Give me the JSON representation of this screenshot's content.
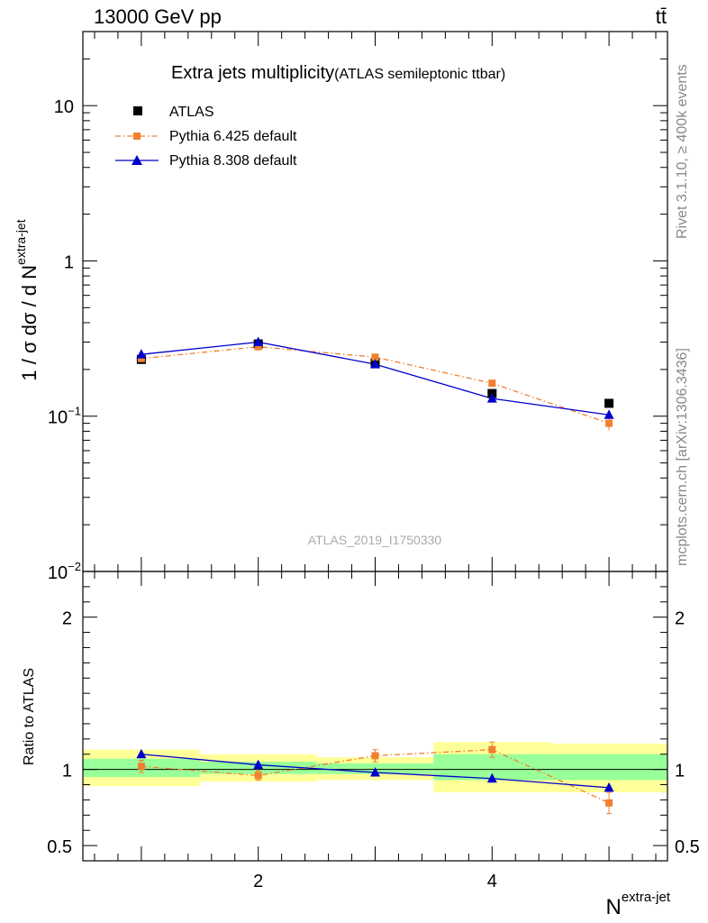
{
  "header": {
    "energy_label": "13000 GeV pp",
    "process_label": "tt̄"
  },
  "side_labels": {
    "rivet": "Rivet 3.1.10, ≥ 400k events",
    "mcplots": "mcplots.cern.ch [arXiv:1306.3436]"
  },
  "colors": {
    "atlas": "#000000",
    "pythia6": "#f08030",
    "pythia8": "#0000cc",
    "band_inner": "#99ff99",
    "band_outer": "#ffff99",
    "label_gray": "#888888"
  },
  "chart_data": [
    {
      "type": "scatter",
      "panel": "main",
      "title": "Extra jets multiplicity",
      "subtitle": "(ATLAS semileptonic ttbar)",
      "watermark": "ATLAS_2019_I1750330",
      "ylabel_base": "1 / σ dσ / d N",
      "ylabel_sup": "extra-jet",
      "yscale": "log",
      "ylim": [
        0.01,
        30
      ],
      "xlim": [
        0.5,
        5.5
      ],
      "yticks": [
        {
          "value": 10,
          "label": "10"
        },
        {
          "value": 1,
          "label": "1"
        },
        {
          "value": 0.1,
          "label": "10",
          "sup": "−1"
        },
        {
          "value": 0.01,
          "label": "10",
          "sup": "−2"
        }
      ],
      "legend_position": "top-left",
      "x": [
        1,
        2,
        3,
        4,
        5
      ],
      "series": [
        {
          "name": "ATLAS",
          "marker": "square",
          "values": [
            0.232,
            0.292,
            0.221,
            0.14,
            0.121
          ],
          "errors": [
            0.004,
            0.004,
            0.004,
            0.003,
            0.003
          ]
        },
        {
          "name": "Pythia 6.425 default",
          "marker": "square-small",
          "line": "dashdot",
          "values": [
            0.235,
            0.28,
            0.24,
            0.163,
            0.09
          ],
          "errors": [
            0.004,
            0.004,
            0.004,
            0.008,
            0.009
          ]
        },
        {
          "name": "Pythia 8.308 default",
          "marker": "triangle",
          "line": "solid",
          "values": [
            0.25,
            0.3,
            0.216,
            0.13,
            0.102
          ],
          "errors": [
            0.003,
            0.003,
            0.003,
            0.003,
            0.003
          ]
        }
      ]
    },
    {
      "type": "scatter",
      "panel": "ratio",
      "ylabel": "Ratio to ATLAS",
      "xlabel_base": "N",
      "xlabel_sup": "extra-jet",
      "ylim": [
        0.4,
        2.3
      ],
      "xlim": [
        0.5,
        5.5
      ],
      "xticks": [
        2,
        4
      ],
      "yticks": [
        {
          "value": 2,
          "label": "2"
        },
        {
          "value": 1,
          "label": "1"
        },
        {
          "value": 0.5,
          "label": "0.5"
        }
      ],
      "x": [
        1,
        2,
        3,
        4,
        5
      ],
      "bands": [
        {
          "x0": 0.5,
          "x1": 1.5,
          "inner": [
            0.95,
            1.07
          ],
          "outer": [
            0.89,
            1.13
          ]
        },
        {
          "x0": 1.5,
          "x1": 2.5,
          "inner": [
            0.97,
            1.05
          ],
          "outer": [
            0.92,
            1.1
          ]
        },
        {
          "x0": 2.5,
          "x1": 3.5,
          "inner": [
            0.97,
            1.04
          ],
          "outer": [
            0.93,
            1.08
          ]
        },
        {
          "x0": 3.5,
          "x1": 4.5,
          "inner": [
            0.93,
            1.1
          ],
          "outer": [
            0.85,
            1.18
          ]
        },
        {
          "x0": 4.5,
          "x1": 5.5,
          "inner": [
            0.93,
            1.1
          ],
          "outer": [
            0.85,
            1.17
          ]
        }
      ],
      "series": [
        {
          "name": "Pythia 6.425 default",
          "marker": "square-small",
          "line": "dashdot",
          "values": [
            1.02,
            0.96,
            1.09,
            1.13,
            0.78
          ],
          "errors": [
            0.04,
            0.03,
            0.04,
            0.05,
            0.07
          ]
        },
        {
          "name": "Pythia 8.308 default",
          "marker": "triangle",
          "line": "solid",
          "values": [
            1.1,
            1.03,
            0.98,
            0.94,
            0.88
          ],
          "errors": [
            0.02,
            0.01,
            0.01,
            0.02,
            0.02
          ]
        }
      ]
    }
  ]
}
